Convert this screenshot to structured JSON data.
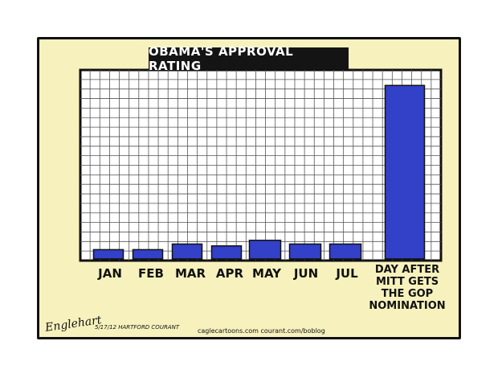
{
  "title": "OBAMA'S APPROVAL RATING",
  "chart_data": {
    "type": "bar",
    "title": "OBAMA'S APPROVAL RATING",
    "categories": [
      "JAN",
      "FEB",
      "MAR",
      "APR",
      "MAY",
      "JUN",
      "JUL",
      "DAY AFTER MITT GETS THE GOP NOMINATION"
    ],
    "values": [
      5,
      5,
      8,
      7,
      10,
      8,
      8,
      93
    ],
    "ylim": [
      0,
      100
    ],
    "grid": true,
    "colors": {
      "bar": "#3340c8",
      "grid": "#555555",
      "plot_bg": "#ffffff"
    }
  },
  "last_label_lines": [
    "DAY AFTER",
    "MITT GETS",
    "THE GOP",
    "NOMINATION"
  ],
  "signature": "Englehart",
  "signature_date": "5/17/12 HARTFORD COURANT",
  "credit": "caglecartoons.com   courant.com/boblog"
}
